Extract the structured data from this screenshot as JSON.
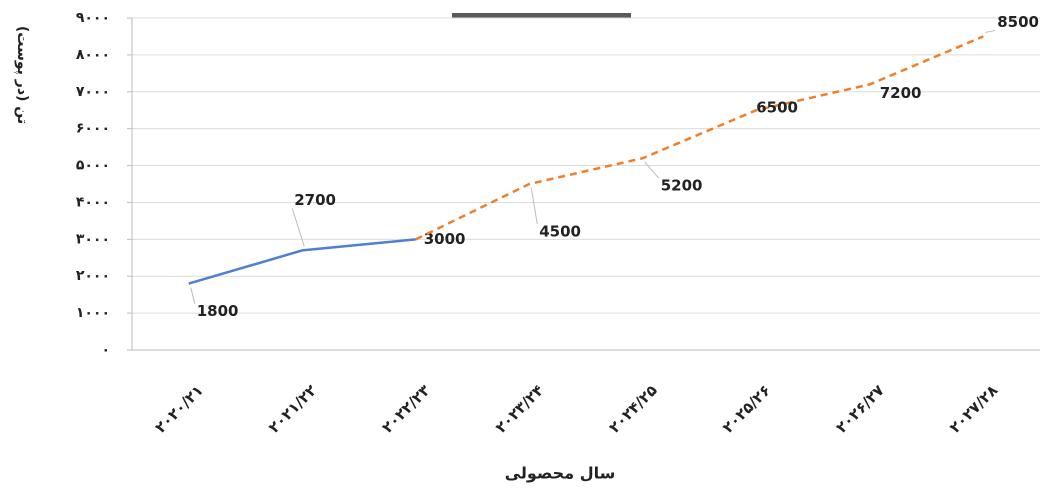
{
  "chart_data": {
    "type": "line",
    "y_label": "تن (در پوست)",
    "x_label": "سال محصولی",
    "categories": [
      "۲۰۲۰/۲۱",
      "۲۰۲۱/۲۲",
      "۲۰۲۲/۲۳",
      "۲۰۲۳/۲۴",
      "۲۰۲۴/۲۵",
      "۲۰۲۵/۲۶",
      "۲۰۲۶/۲۷",
      "۲۰۲۷/۲۸"
    ],
    "series": [
      {
        "color": "#4f7fd4",
        "dashed": false,
        "values": [
          1800,
          2700,
          3000,
          null,
          null,
          null,
          null,
          null
        ]
      },
      {
        "color": "#f07f2a",
        "dashed": true,
        "values": [
          null,
          null,
          3000,
          4500,
          5200,
          6500,
          7200,
          8500
        ]
      }
    ],
    "ylim": [
      0,
      9000
    ],
    "yticks": [
      {
        "value": 0,
        "label": "۰"
      },
      {
        "value": 1000,
        "label": "۱۰۰۰"
      },
      {
        "value": 2000,
        "label": "۲۰۰۰"
      },
      {
        "value": 3000,
        "label": "۳۰۰۰"
      },
      {
        "value": 4000,
        "label": "۴۰۰۰"
      },
      {
        "value": 5000,
        "label": "۵۰۰۰"
      },
      {
        "value": 6000,
        "label": "۶۰۰۰"
      },
      {
        "value": 7000,
        "label": "۷۰۰۰"
      },
      {
        "value": 8000,
        "label": "۸۰۰۰"
      },
      {
        "value": 9000,
        "label": "۹۰۰۰"
      }
    ],
    "grid": true
  }
}
